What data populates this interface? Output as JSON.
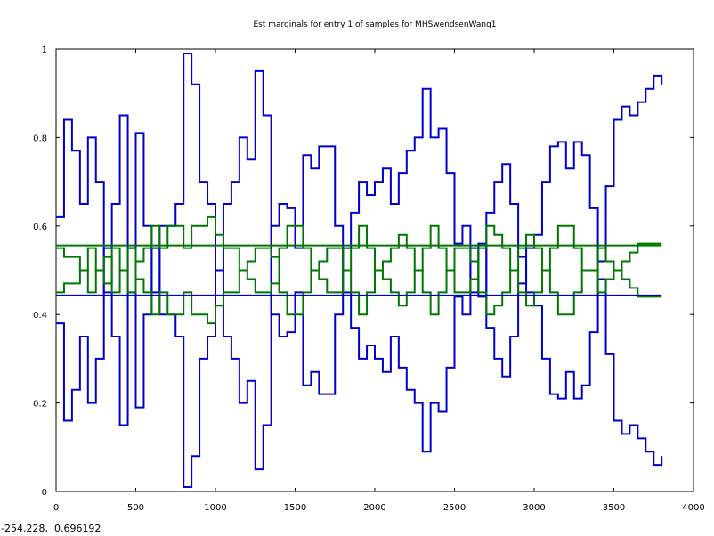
{
  "window": {
    "coord_readout": "-254.228,  0.696192"
  },
  "chart_data": {
    "type": "line",
    "title": "Est marginals for entry 1 of samples for MHSwendsenWang1",
    "xlabel": "",
    "ylabel": "",
    "xlim": [
      0,
      4000
    ],
    "ylim": [
      0,
      1
    ],
    "x_ticks": [
      0,
      500,
      1000,
      1500,
      2000,
      2500,
      3000,
      3500,
      4000
    ],
    "y_ticks": [
      0,
      0.2,
      0.4,
      0.6,
      0.8,
      1
    ],
    "x_tick_labels": [
      "0",
      "500",
      "1000",
      "1500",
      "2000",
      "2500",
      "3000",
      "3500",
      "4000"
    ],
    "y_tick_labels": [
      "0",
      "0.2",
      "0.4",
      "0.6",
      "0.8",
      "1"
    ],
    "grid": false,
    "legend": "none",
    "series": [
      {
        "color": "#0000cc",
        "x": [
          0,
          50,
          100,
          150,
          200,
          250,
          300,
          350,
          400,
          450,
          500,
          550,
          600,
          650,
          700,
          750,
          800,
          850,
          900,
          950,
          1000,
          1050,
          1100,
          1150,
          1200,
          1250,
          1300,
          1350,
          1400,
          1450,
          1500,
          1550,
          1600,
          1650,
          1700,
          1750,
          1800,
          1850,
          1900,
          1950,
          2000,
          2050,
          2100,
          2150,
          2200,
          2250,
          2300,
          2350,
          2400,
          2450,
          2500,
          2550,
          2600,
          2650,
          2700,
          2750,
          2800,
          2850,
          2900,
          2950,
          3000,
          3050,
          3100,
          3150,
          3200,
          3250,
          3300,
          3350,
          3400,
          3450,
          3500,
          3550,
          3600,
          3650,
          3700,
          3750,
          3800
        ],
        "values": [
          0.62,
          0.84,
          0.77,
          0.65,
          0.8,
          0.7,
          0.45,
          0.35,
          0.15,
          0.55,
          0.81,
          0.6,
          0.45,
          0.6,
          0.6,
          0.65,
          0.99,
          0.92,
          0.7,
          0.65,
          0.5,
          0.35,
          0.3,
          0.2,
          0.25,
          0.05,
          0.15,
          0.6,
          0.65,
          0.64,
          0.55,
          0.76,
          0.73,
          0.78,
          0.78,
          0.6,
          0.45,
          0.37,
          0.3,
          0.33,
          0.3,
          0.27,
          0.35,
          0.28,
          0.23,
          0.2,
          0.09,
          0.2,
          0.18,
          0.28,
          0.44,
          0.4,
          0.55,
          0.44,
          0.63,
          0.7,
          0.74,
          0.65,
          0.53,
          0.45,
          0.42,
          0.3,
          0.22,
          0.21,
          0.27,
          0.21,
          0.24,
          0.36,
          0.48,
          0.31,
          0.16,
          0.13,
          0.15,
          0.12,
          0.09,
          0.06,
          0.08
        ]
      },
      {
        "color": "#0000cc",
        "x": [
          0,
          50,
          100,
          150,
          200,
          250,
          300,
          350,
          400,
          450,
          500,
          550,
          600,
          650,
          700,
          750,
          800,
          850,
          900,
          950,
          1000,
          1050,
          1100,
          1150,
          1200,
          1250,
          1300,
          1350,
          1400,
          1450,
          1500,
          1550,
          1600,
          1650,
          1700,
          1750,
          1800,
          1850,
          1900,
          1950,
          2000,
          2050,
          2100,
          2150,
          2200,
          2250,
          2300,
          2350,
          2400,
          2450,
          2500,
          2550,
          2600,
          2650,
          2700,
          2750,
          2800,
          2850,
          2900,
          2950,
          3000,
          3050,
          3100,
          3150,
          3200,
          3250,
          3300,
          3350,
          3400,
          3450,
          3500,
          3550,
          3600,
          3650,
          3700,
          3750,
          3800
        ],
        "values": [
          0.38,
          0.16,
          0.23,
          0.35,
          0.2,
          0.3,
          0.55,
          0.65,
          0.85,
          0.45,
          0.19,
          0.4,
          0.55,
          0.4,
          0.4,
          0.35,
          0.01,
          0.08,
          0.3,
          0.35,
          0.5,
          0.65,
          0.7,
          0.8,
          0.75,
          0.95,
          0.85,
          0.4,
          0.35,
          0.36,
          0.45,
          0.24,
          0.27,
          0.22,
          0.22,
          0.4,
          0.55,
          0.63,
          0.7,
          0.67,
          0.7,
          0.73,
          0.65,
          0.72,
          0.77,
          0.8,
          0.91,
          0.8,
          0.82,
          0.72,
          0.56,
          0.6,
          0.45,
          0.56,
          0.37,
          0.3,
          0.26,
          0.35,
          0.47,
          0.55,
          0.58,
          0.7,
          0.78,
          0.79,
          0.73,
          0.79,
          0.76,
          0.64,
          0.52,
          0.69,
          0.84,
          0.87,
          0.85,
          0.88,
          0.91,
          0.94,
          0.92
        ]
      },
      {
        "color": "#007700",
        "x": [
          0,
          50,
          100,
          150,
          200,
          250,
          300,
          350,
          400,
          450,
          500,
          550,
          600,
          650,
          700,
          750,
          800,
          850,
          900,
          950,
          1000,
          1050,
          1100,
          1150,
          1200,
          1250,
          1300,
          1350,
          1400,
          1450,
          1500,
          1550,
          1600,
          1650,
          1700,
          1750,
          1800,
          1850,
          1900,
          1950,
          2000,
          2050,
          2100,
          2150,
          2200,
          2250,
          2300,
          2350,
          2400,
          2450,
          2500,
          2550,
          2600,
          2650,
          2700,
          2750,
          2800,
          2850,
          2900,
          2950,
          3000,
          3050,
          3100,
          3150,
          3200,
          3250,
          3300,
          3350,
          3400,
          3450,
          3500,
          3550,
          3600,
          3650,
          3700,
          3750,
          3800
        ],
        "values": [
          0.45,
          0.47,
          0.47,
          0.5,
          0.55,
          0.5,
          0.47,
          0.55,
          0.5,
          0.45,
          0.52,
          0.55,
          0.6,
          0.55,
          0.6,
          0.6,
          0.55,
          0.6,
          0.6,
          0.62,
          0.58,
          0.55,
          0.55,
          0.5,
          0.48,
          0.45,
          0.45,
          0.47,
          0.55,
          0.6,
          0.6,
          0.55,
          0.5,
          0.48,
          0.45,
          0.45,
          0.5,
          0.55,
          0.6,
          0.55,
          0.5,
          0.48,
          0.45,
          0.42,
          0.45,
          0.5,
          0.55,
          0.6,
          0.55,
          0.5,
          0.45,
          0.45,
          0.48,
          0.55,
          0.6,
          0.58,
          0.55,
          0.5,
          0.45,
          0.42,
          0.45,
          0.5,
          0.55,
          0.6,
          0.6,
          0.55,
          0.5,
          0.5,
          0.55,
          0.52,
          0.5,
          0.48,
          0.46,
          0.44,
          0.44,
          0.44,
          0.44
        ]
      },
      {
        "color": "#007700",
        "x": [
          0,
          50,
          100,
          150,
          200,
          250,
          300,
          350,
          400,
          450,
          500,
          550,
          600,
          650,
          700,
          750,
          800,
          850,
          900,
          950,
          1000,
          1050,
          1100,
          1150,
          1200,
          1250,
          1300,
          1350,
          1400,
          1450,
          1500,
          1550,
          1600,
          1650,
          1700,
          1750,
          1800,
          1850,
          1900,
          1950,
          2000,
          2050,
          2100,
          2150,
          2200,
          2250,
          2300,
          2350,
          2400,
          2450,
          2500,
          2550,
          2600,
          2650,
          2700,
          2750,
          2800,
          2850,
          2900,
          2950,
          3000,
          3050,
          3100,
          3150,
          3200,
          3250,
          3300,
          3350,
          3400,
          3450,
          3500,
          3550,
          3600,
          3650,
          3700,
          3750,
          3800
        ],
        "values": [
          0.55,
          0.53,
          0.53,
          0.5,
          0.45,
          0.5,
          0.53,
          0.45,
          0.5,
          0.55,
          0.48,
          0.45,
          0.4,
          0.45,
          0.4,
          0.4,
          0.45,
          0.4,
          0.4,
          0.38,
          0.42,
          0.45,
          0.45,
          0.5,
          0.52,
          0.55,
          0.55,
          0.53,
          0.45,
          0.4,
          0.4,
          0.45,
          0.5,
          0.52,
          0.55,
          0.55,
          0.5,
          0.45,
          0.4,
          0.45,
          0.5,
          0.52,
          0.55,
          0.58,
          0.55,
          0.5,
          0.45,
          0.4,
          0.45,
          0.5,
          0.55,
          0.55,
          0.52,
          0.45,
          0.4,
          0.42,
          0.45,
          0.5,
          0.55,
          0.58,
          0.55,
          0.5,
          0.45,
          0.4,
          0.4,
          0.45,
          0.5,
          0.5,
          0.45,
          0.48,
          0.5,
          0.52,
          0.54,
          0.56,
          0.56,
          0.56,
          0.56
        ]
      },
      {
        "color": "#007700",
        "x": [
          0,
          3800
        ],
        "values": [
          0.556,
          0.556
        ]
      },
      {
        "color": "#0000cc",
        "x": [
          0,
          3800
        ],
        "values": [
          0.443,
          0.443
        ]
      }
    ]
  }
}
